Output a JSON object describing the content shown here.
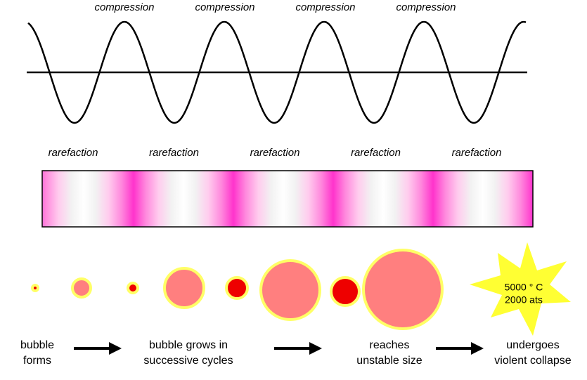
{
  "wave": {
    "compression_labels": [
      "compression",
      "compression",
      "compression",
      "compression"
    ],
    "rarefaction_labels": [
      "rarefaction",
      "rarefaction",
      "rarefaction",
      "rarefaction",
      "rarefaction"
    ]
  },
  "collapse": {
    "lines": [
      "5000 ° C",
      "2000 ats"
    ]
  },
  "stages": [
    {
      "lines": [
        "bubble",
        "forms"
      ]
    },
    {
      "lines": [
        "bubble grows in",
        "successive cycles"
      ]
    },
    {
      "lines": [
        "reaches",
        "unstable size"
      ]
    },
    {
      "lines": [
        "undergoes",
        "violent collapse"
      ]
    }
  ]
}
